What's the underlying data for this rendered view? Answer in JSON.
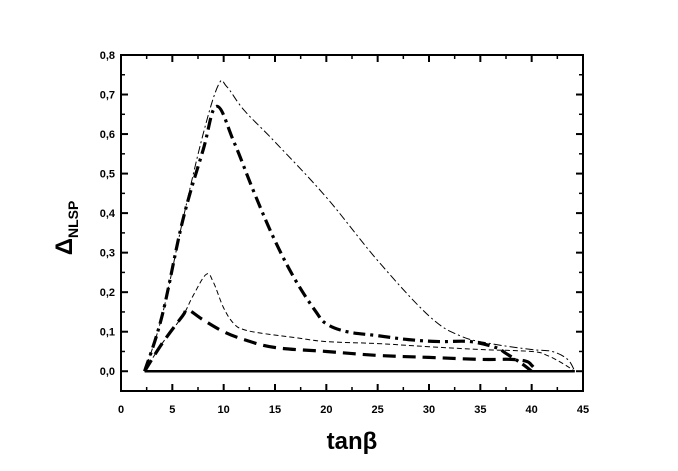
{
  "chart_data": {
    "type": "line",
    "xlabel": "tanβ",
    "ylabel_main": "Δ",
    "ylabel_sub": "NLSP",
    "xlim": [
      0,
      45
    ],
    "ylim": [
      -0.05,
      0.8
    ],
    "x_ticks": [
      0,
      5,
      10,
      15,
      20,
      25,
      30,
      35,
      40,
      45
    ],
    "x_tick_labels": [
      "0",
      "5",
      "10",
      "15",
      "20",
      "25",
      "30",
      "35",
      "40",
      "45"
    ],
    "y_ticks": [
      0.0,
      0.1,
      0.2,
      0.3,
      0.4,
      0.5,
      0.6,
      0.7,
      0.8
    ],
    "y_tick_labels": [
      "0,0",
      "0,1",
      "0,2",
      "0,3",
      "0,4",
      "0,5",
      "0,6",
      "0,7",
      "0,8"
    ],
    "grid": false,
    "series": [
      {
        "style": "thick-dashdot",
        "x": [
          2.3,
          4,
          6,
          8,
          9.3,
          11,
          13,
          15,
          17,
          19,
          20,
          22,
          25,
          28,
          31,
          34,
          36.5,
          37.5,
          39,
          40
        ],
        "y": [
          0.0,
          0.14,
          0.38,
          0.56,
          0.67,
          0.58,
          0.45,
          0.33,
          0.23,
          0.15,
          0.12,
          0.1,
          0.09,
          0.08,
          0.075,
          0.075,
          0.06,
          0.045,
          0.02,
          0.0
        ]
      },
      {
        "style": "thin-dashdot",
        "x": [
          2.3,
          4,
          6,
          8,
          9.5,
          10.3,
          12,
          15,
          20,
          25,
          30,
          33,
          36,
          40,
          42,
          43.5,
          44.2
        ],
        "y": [
          0.0,
          0.14,
          0.38,
          0.6,
          0.725,
          0.72,
          0.66,
          0.58,
          0.44,
          0.28,
          0.14,
          0.09,
          0.07,
          0.055,
          0.05,
          0.03,
          0.0
        ]
      },
      {
        "style": "thick-dashed",
        "x": [
          2.3,
          4,
          6,
          6.5,
          8,
          10,
          12,
          15,
          20,
          25,
          30,
          35,
          38,
          39.5,
          40,
          40.5
        ],
        "y": [
          0.0,
          0.07,
          0.14,
          0.155,
          0.13,
          0.1,
          0.08,
          0.06,
          0.05,
          0.04,
          0.035,
          0.03,
          0.03,
          0.025,
          0.015,
          0.0
        ]
      },
      {
        "style": "thin-dashed",
        "x": [
          2.3,
          4,
          6,
          7,
          8.3,
          9,
          10,
          11,
          12,
          14,
          17,
          20,
          25,
          30,
          35,
          40,
          41.5,
          43,
          44.2
        ],
        "y": [
          0.0,
          0.07,
          0.14,
          0.19,
          0.245,
          0.225,
          0.16,
          0.12,
          0.105,
          0.095,
          0.085,
          0.075,
          0.07,
          0.062,
          0.055,
          0.05,
          0.04,
          0.02,
          0.0
        ]
      },
      {
        "style": "solid",
        "x": [
          2.3,
          44.2
        ],
        "y": [
          0.0,
          0.0
        ]
      }
    ]
  }
}
